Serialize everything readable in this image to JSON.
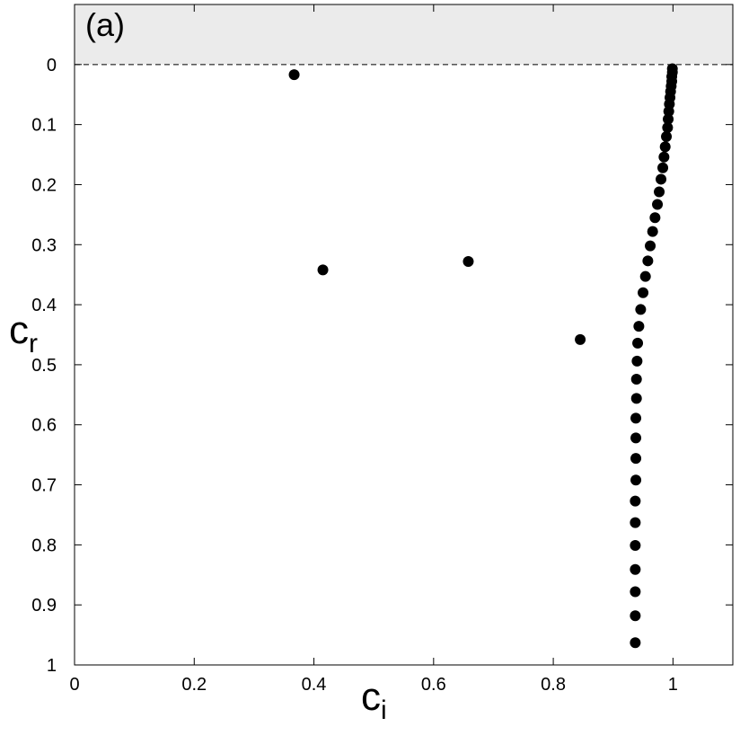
{
  "chart_data": {
    "type": "scatter",
    "annotation": "(a)",
    "x_label": {
      "main": "c",
      "sub": "i"
    },
    "y_label": {
      "main": "c",
      "sub": "r"
    },
    "xlim": [
      0,
      1.1
    ],
    "ylim": [
      -0.1,
      1
    ],
    "y_inverted": true,
    "xticks": [
      0,
      0.2,
      0.4,
      0.6,
      0.8,
      1
    ],
    "yticks": [
      0,
      0.1,
      0.2,
      0.3,
      0.4,
      0.5,
      0.6,
      0.7,
      0.8,
      0.9,
      1
    ],
    "shaded_region": [
      -0.1,
      0
    ],
    "shaded_color": "#ebebeb",
    "reference_line": 0,
    "series": [
      {
        "color": "#000000",
        "x": [
          0.367,
          0.415,
          0.658,
          0.845
        ],
        "y": [
          0.017,
          0.342,
          0.328,
          0.458
        ]
      },
      {
        "color": "#000000",
        "x": [
          0.937,
          0.937,
          0.937,
          0.937,
          0.937,
          0.937,
          0.937,
          0.938,
          0.938,
          0.938,
          0.938,
          0.939,
          0.939,
          0.94,
          0.941,
          0.943,
          0.946,
          0.95,
          0.954,
          0.958,
          0.962,
          0.966,
          0.97,
          0.974,
          0.977,
          0.98,
          0.983,
          0.985,
          0.987,
          0.989,
          0.991,
          0.992,
          0.993,
          0.994,
          0.995,
          0.996,
          0.997,
          0.998,
          0.998,
          0.999,
          0.999
        ],
        "y": [
          0.963,
          0.918,
          0.878,
          0.841,
          0.801,
          0.763,
          0.727,
          0.692,
          0.656,
          0.622,
          0.589,
          0.556,
          0.524,
          0.494,
          0.464,
          0.436,
          0.408,
          0.38,
          0.353,
          0.327,
          0.302,
          0.278,
          0.255,
          0.233,
          0.212,
          0.191,
          0.172,
          0.154,
          0.137,
          0.12,
          0.105,
          0.091,
          0.078,
          0.066,
          0.055,
          0.045,
          0.036,
          0.028,
          0.02,
          0.013,
          0.007
        ]
      }
    ]
  }
}
